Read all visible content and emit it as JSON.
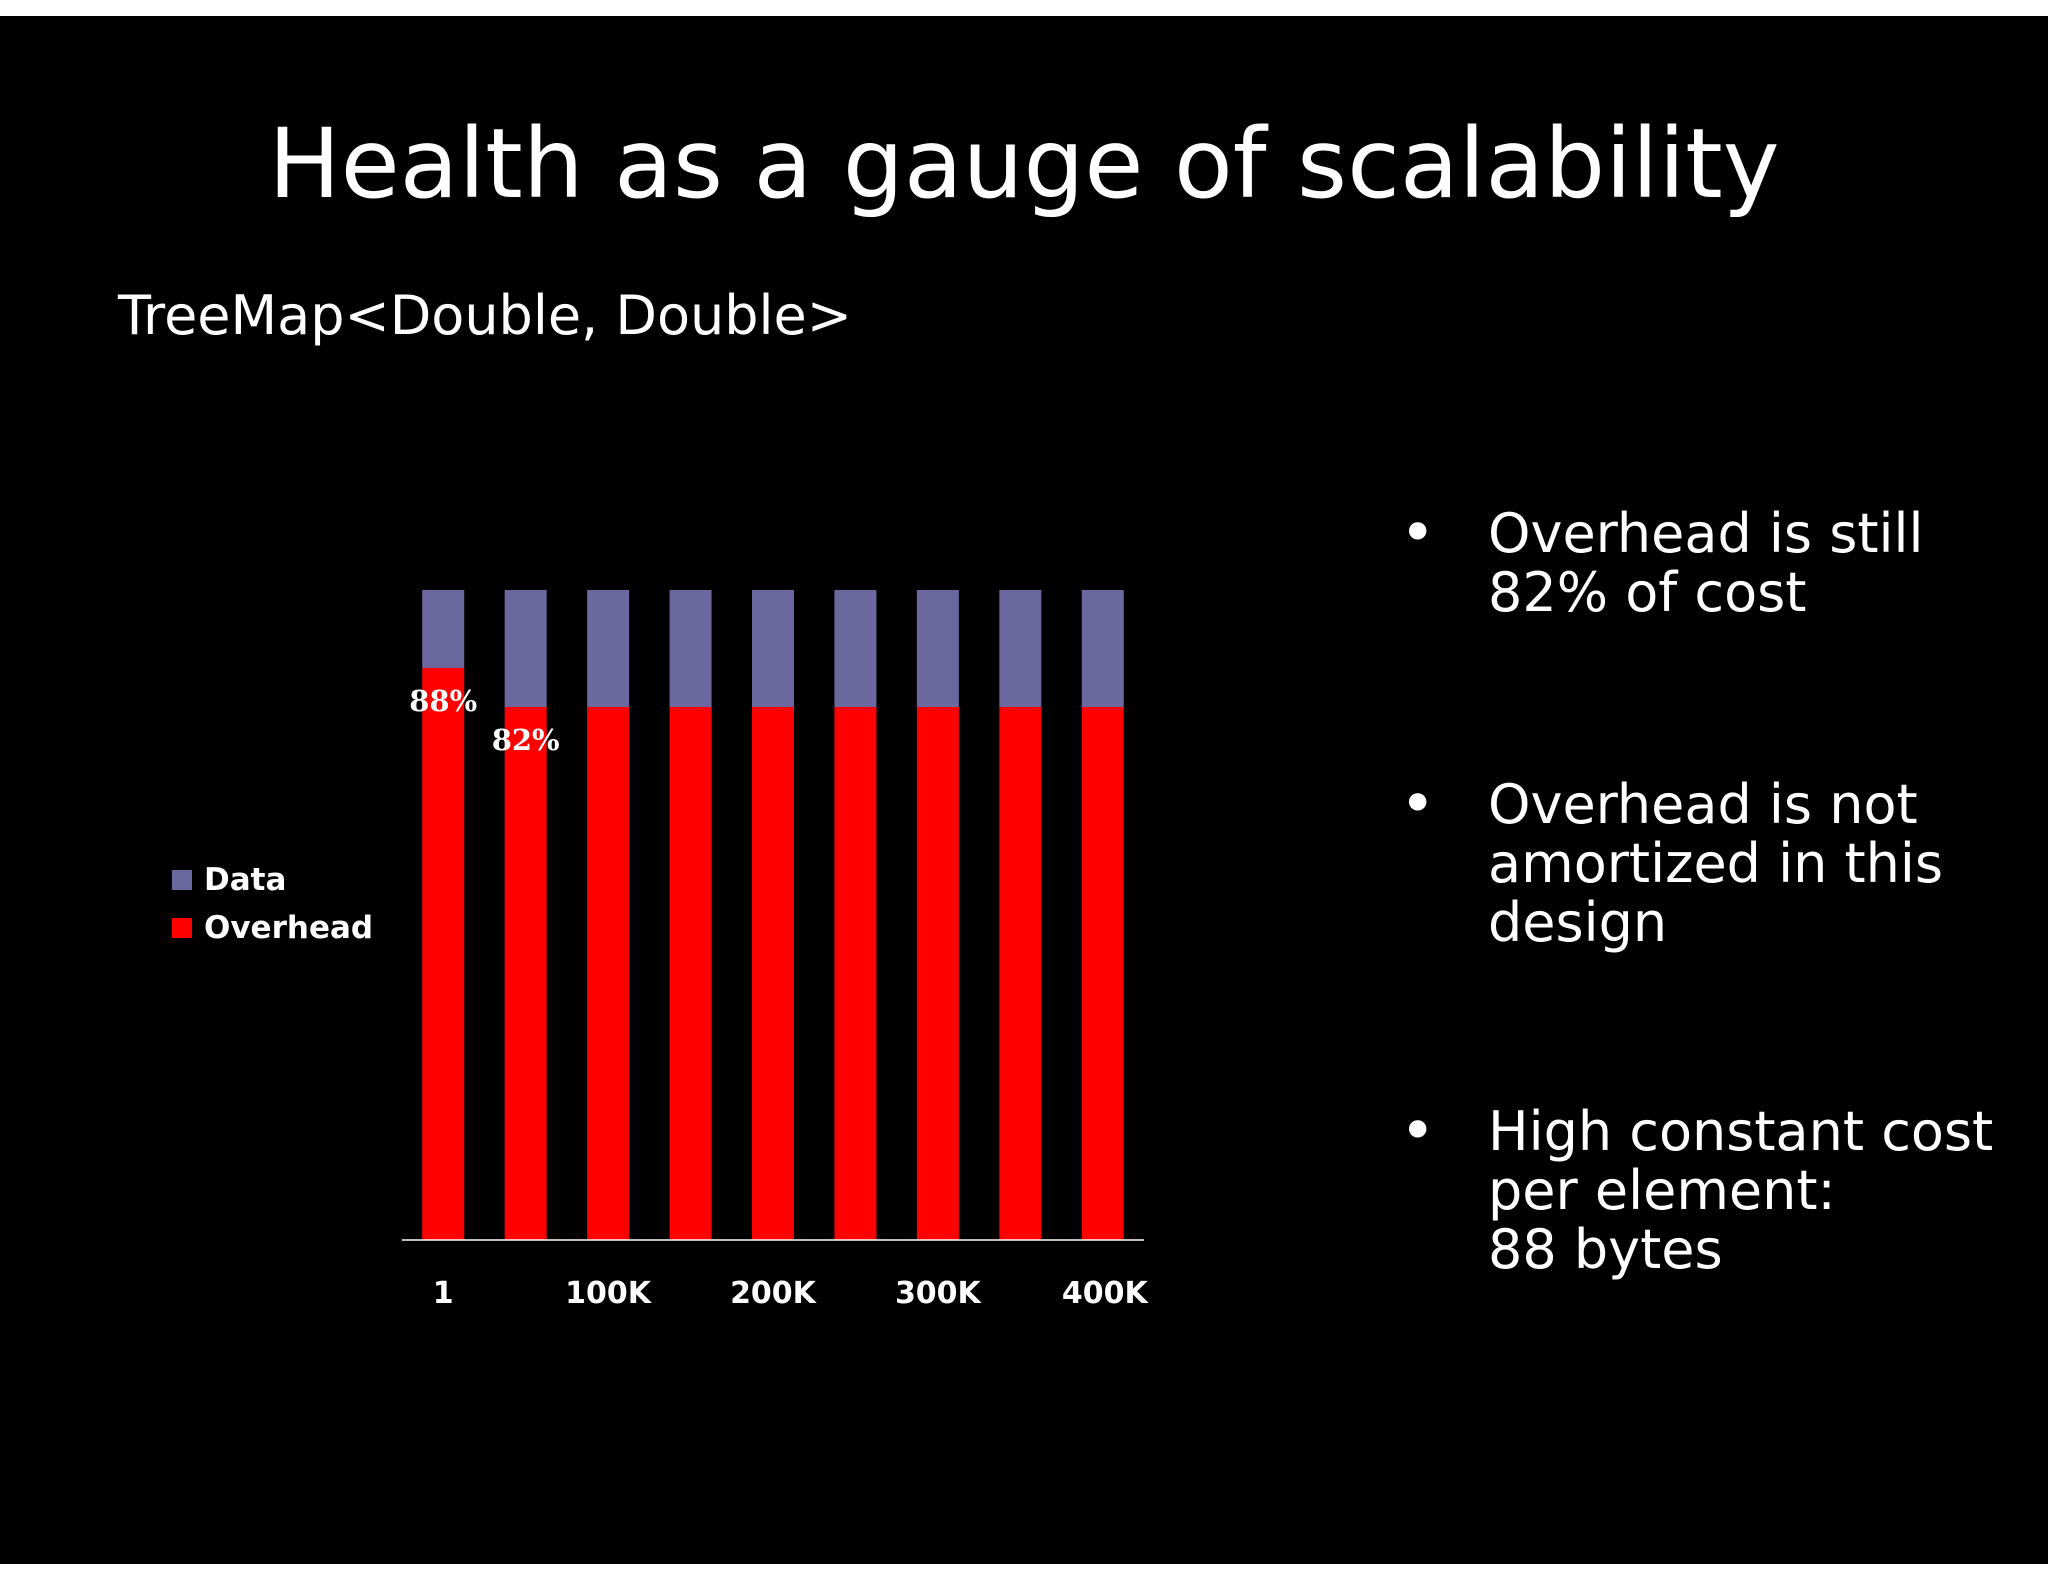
{
  "slide": {
    "title": "Health as a gauge of scalability",
    "subtitle": "TreeMap<Double, Double>",
    "bullets": [
      {
        "text": "Overhead is still\n82% of cost"
      },
      {
        "text": "Overhead is not\namortized in this\ndesign"
      },
      {
        "text": "High constant cost\nper element:\n88 bytes"
      }
    ]
  },
  "colors": {
    "background": "#000000",
    "data": "#6a689e",
    "overhead": "#ff0000",
    "text": "#ffffff"
  },
  "chart_data": {
    "type": "bar",
    "stacked": true,
    "title": "",
    "xlabel": "",
    "ylabel": "",
    "tick_labels": [
      "1",
      "100K",
      "200K",
      "300K",
      "400K"
    ],
    "x": [
      1,
      50000,
      100000,
      150000,
      200000,
      250000,
      300000,
      350000,
      400000
    ],
    "ylim": [
      0,
      100
    ],
    "series": [
      {
        "name": "Data",
        "color": "#6a689e",
        "values": [
          12,
          18,
          18,
          18,
          18,
          18,
          18,
          18,
          18
        ]
      },
      {
        "name": "Overhead",
        "color": "#ff0000",
        "values": [
          88,
          82,
          82,
          82,
          82,
          82,
          82,
          82,
          82
        ]
      }
    ],
    "data_labels": [
      {
        "index": 0,
        "text": "88%"
      },
      {
        "index": 1,
        "text": "82%"
      }
    ],
    "grid": false,
    "legend_position": "left"
  }
}
